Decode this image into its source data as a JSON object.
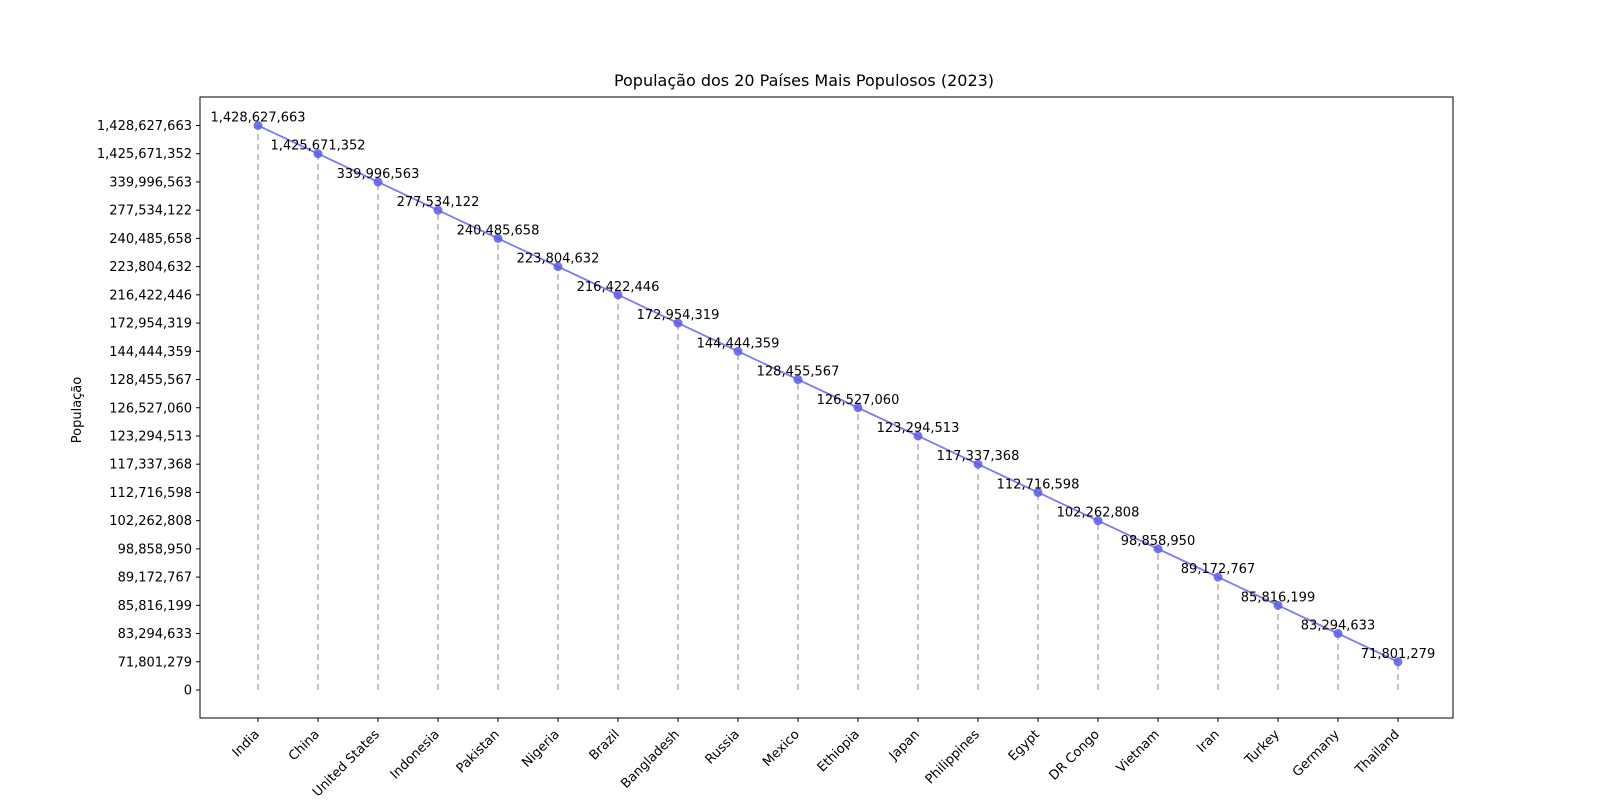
{
  "chart_data": {
    "type": "line",
    "title": "População dos 20 Países Mais Populosos (2023)",
    "xlabel": "",
    "ylabel": "População",
    "categories": [
      "India",
      "China",
      "United States",
      "Indonesia",
      "Pakistan",
      "Nigeria",
      "Brazil",
      "Bangladesh",
      "Russia",
      "Mexico",
      "Ethiopia",
      "Japan",
      "Philippines",
      "Egypt",
      "DR Congo",
      "Vietnam",
      "Iran",
      "Turkey",
      "Germany",
      "Thailand"
    ],
    "values": [
      1428627663,
      1425671352,
      339996563,
      277534122,
      240485658,
      223804632,
      216422446,
      172954319,
      144444359,
      128455567,
      126527060,
      123294513,
      117337368,
      112716598,
      102262808,
      98858950,
      89172767,
      85816199,
      83294633,
      71801279
    ],
    "value_labels": [
      "1,428,627,663",
      "1,425,671,352",
      "339,996,563",
      "277,534,122",
      "240,485,658",
      "223,804,632",
      "216,422,446",
      "172,954,319",
      "144,444,359",
      "128,455,567",
      "126,527,060",
      "123,294,513",
      "117,337,368",
      "112,716,598",
      "102,262,808",
      "98,858,950",
      "89,172,767",
      "85,816,199",
      "83,294,633",
      "71,801,279"
    ],
    "y_ticks": [
      "0",
      "71,801,279",
      "83,294,633",
      "85,816,199",
      "89,172,767",
      "98,858,950",
      "102,262,808",
      "112,716,598",
      "117,337,368",
      "123,294,513",
      "126,527,060",
      "128,455,567",
      "144,444,359",
      "172,954,319",
      "216,422,446",
      "223,804,632",
      "240,485,658",
      "277,534,122",
      "339,996,563",
      "1,425,671,352",
      "1,428,627,663"
    ],
    "y_scale": "categorical (one tick per data value, evenly spaced)",
    "drop_lines": "dashed vertical lines from 0 to each value",
    "grid": false,
    "legend": false,
    "colors": {
      "line": "#7b7bf5",
      "marker": "#5a5ae6",
      "drop_line": "#b0b0b0"
    }
  }
}
